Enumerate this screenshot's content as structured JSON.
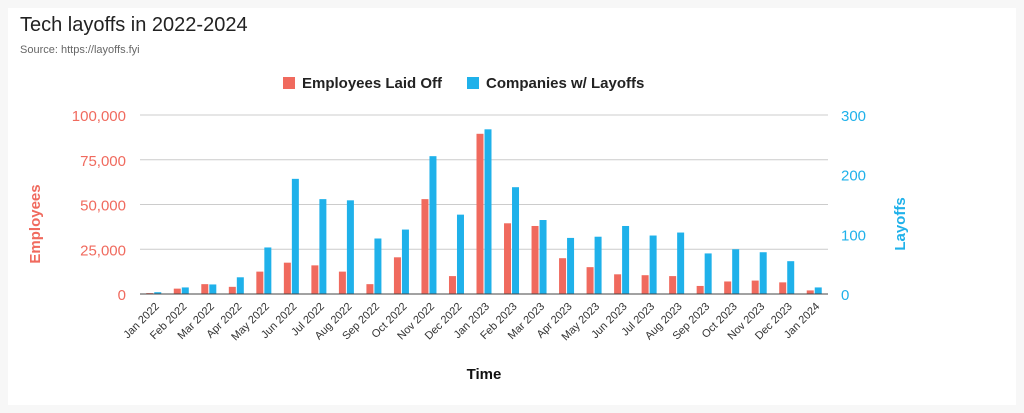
{
  "title": "Tech layoffs in 2022-2024",
  "subtitle": "Source: https://layoffs.fyi",
  "colors": {
    "employees": "#f06a5e",
    "companies": "#1fb1ea",
    "grid": "#cccccc",
    "axis": "#444444"
  },
  "chart_data": {
    "type": "bar",
    "xlabel": "Time",
    "ylabel_left": "Employees",
    "ylabel_right": "Layoffs",
    "ylim_left": [
      0,
      100000
    ],
    "ylim_right": [
      0,
      300
    ],
    "yticks_left": [
      "0",
      "25,000",
      "50,000",
      "75,000",
      "100,000"
    ],
    "yticks_right": [
      "0",
      "100",
      "200",
      "300"
    ],
    "grid": true,
    "legend_position": "top-center",
    "categories": [
      "Jan 2022",
      "Feb 2022",
      "Mar 2022",
      "Apr 2022",
      "May 2022",
      "Jun 2022",
      "Jul 2022",
      "Aug 2022",
      "Sep 2022",
      "Oct 2022",
      "Nov 2022",
      "Dec 2022",
      "Jan 2023",
      "Feb 2023",
      "Mar 2023",
      "Apr 2023",
      "May 2023",
      "Jun 2023",
      "Jul 2023",
      "Aug 2023",
      "Sep 2023",
      "Oct 2023",
      "Nov 2023",
      "Dec 2023",
      "Jan 2024"
    ],
    "series": [
      {
        "name": "Employees Laid Off",
        "axis": "left",
        "values": [
          500,
          3000,
          5500,
          4000,
          12500,
          17500,
          16000,
          12500,
          5500,
          20500,
          53000,
          10000,
          89500,
          39500,
          38000,
          20000,
          15000,
          11000,
          10500,
          10000,
          4500,
          7000,
          7500,
          6500,
          2000
        ]
      },
      {
        "name": "Companies w/ Layoffs",
        "axis": "right",
        "values": [
          3,
          11,
          16,
          28,
          78,
          193,
          159,
          157,
          93,
          108,
          231,
          133,
          276,
          179,
          124,
          94,
          96,
          114,
          98,
          103,
          68,
          75,
          70,
          55,
          11
        ]
      }
    ]
  }
}
